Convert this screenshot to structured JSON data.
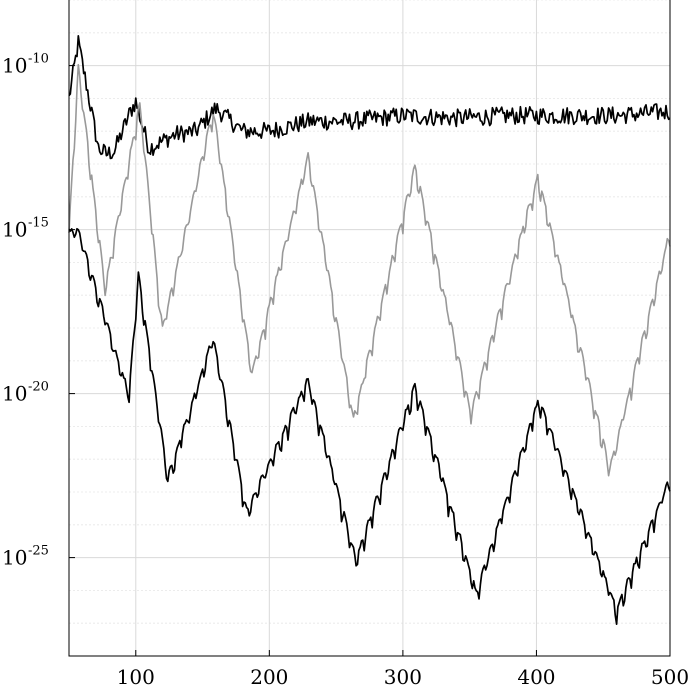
{
  "chart_data": {
    "type": "line",
    "title": "",
    "xlabel": "",
    "ylabel": "",
    "x_scale": "linear",
    "y_scale": "log",
    "xlim": [
      50,
      500
    ],
    "ylim": [
      1e-28,
      1e-08
    ],
    "grid": true,
    "x_ticks": [
      {
        "value": 100,
        "label": "100"
      },
      {
        "value": 200,
        "label": "200"
      },
      {
        "value": 300,
        "label": "300"
      },
      {
        "value": 400,
        "label": "400"
      },
      {
        "value": 500,
        "label": "500"
      }
    ],
    "y_ticks": [
      {
        "value": 1e-10,
        "base": "10",
        "exp": "-10"
      },
      {
        "value": 1e-15,
        "base": "10",
        "exp": "-15"
      },
      {
        "value": 1e-20,
        "base": "10",
        "exp": "-20"
      },
      {
        "value": 1e-25,
        "base": "10",
        "exp": "-25"
      }
    ],
    "series": [
      {
        "color": "#000000",
        "style": "noisy",
        "x": [
          50,
          57,
          65,
          72,
          78,
          84,
          90,
          96,
          100,
          104,
          110,
          120,
          130,
          145,
          160,
          180,
          200,
          230,
          260,
          300,
          340,
          380,
          420,
          460,
          500
        ],
        "y": [
          1e-11,
          5e-10,
          1e-11,
          3e-13,
          2e-13,
          2.5e-13,
          1e-12,
          4e-12,
          8e-12,
          2e-12,
          3e-13,
          5e-13,
          8e-13,
          1e-12,
          5e-12,
          1e-12,
          1e-12,
          2e-12,
          2e-12,
          3e-12,
          2.5e-12,
          3e-12,
          3e-12,
          3e-12,
          4e-12
        ]
      },
      {
        "color": "#999999",
        "style": "dips",
        "x": [
          50,
          57,
          77,
          103,
          120,
          158,
          187,
          229,
          263,
          309,
          351,
          401,
          455,
          500
        ],
        "y": [
          1e-15,
          1e-10,
          2e-17,
          8e-12,
          1e-18,
          5e-12,
          5e-20,
          2e-13,
          2e-21,
          1e-13,
          3e-21,
          5e-14,
          6e-23,
          1e-15
        ]
      },
      {
        "color": "#000000",
        "style": "dips",
        "x": [
          50,
          57,
          95,
          102,
          124,
          158,
          183,
          229,
          265,
          309,
          355,
          402,
          460,
          500
        ],
        "y": [
          1e-15,
          1e-15,
          1e-20,
          5e-17,
          3e-23,
          6e-19,
          3e-24,
          3e-20,
          1e-25,
          2e-20,
          1e-26,
          8e-21,
          3e-27,
          3e-23
        ]
      }
    ]
  }
}
